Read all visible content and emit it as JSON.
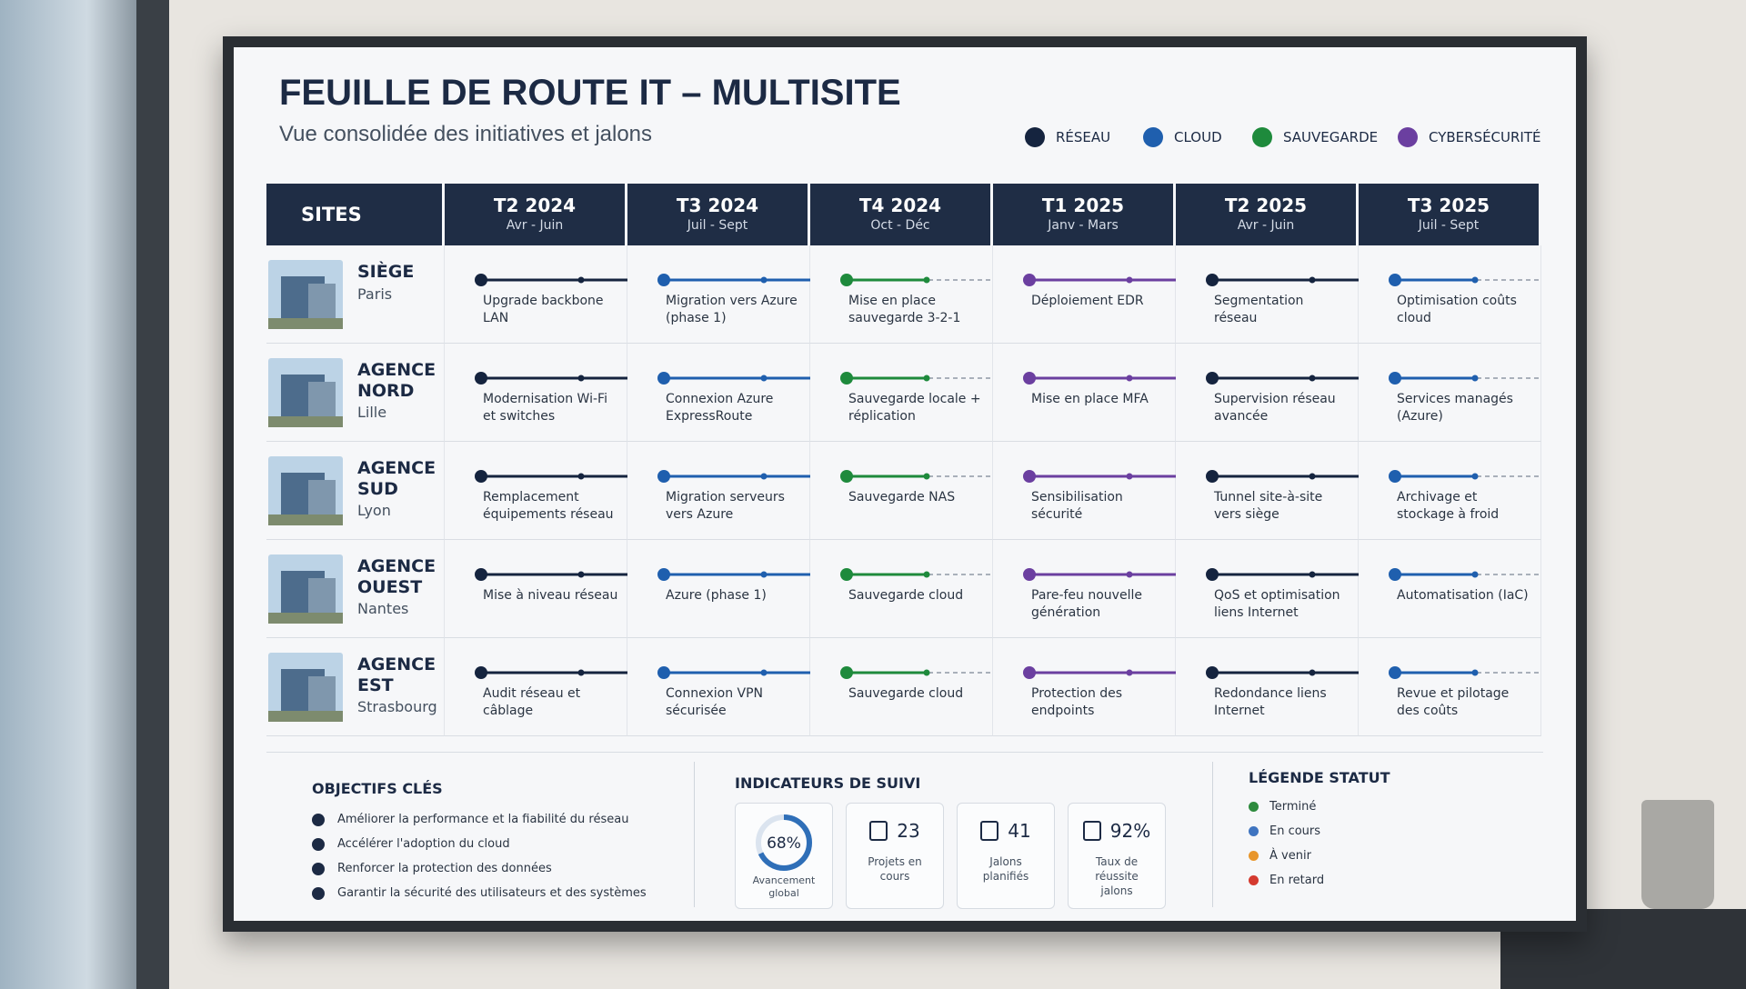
{
  "header": {
    "title": "FEUILLE DE ROUTE IT – MULTISITE",
    "subtitle": "Vue consolidée des initiatives et jalons"
  },
  "legend": [
    {
      "name": "RÉSEAU",
      "color": "#15243f"
    },
    {
      "name": "CLOUD",
      "color": "#1f5fae"
    },
    {
      "name": "SAUVEGARDE",
      "color": "#1e8a3c"
    },
    {
      "name": "CYBERSÉCURITÉ",
      "color": "#6b3fa0"
    }
  ],
  "table": {
    "sites_header": "SITES",
    "columns": [
      {
        "quarter": "T2 2024",
        "months": "Avr - Juin",
        "color": "#15243f"
      },
      {
        "quarter": "T3 2024",
        "months": "Juil - Sept",
        "color": "#1f5fae"
      },
      {
        "quarter": "T4 2024",
        "months": "Oct - Déc",
        "color": "#1e8a3c"
      },
      {
        "quarter": "T1 2025",
        "months": "Janv - Mars",
        "color": "#6b3fa0"
      },
      {
        "quarter": "T2 2025",
        "months": "Avr - Juin",
        "color": "#15243f"
      },
      {
        "quarter": "T3 2025",
        "months": "Juil - Sept",
        "color": "#1f5fae"
      }
    ],
    "rows": [
      {
        "name": "SIÈGE",
        "city": "Paris",
        "items": [
          "Upgrade backbone LAN",
          "Migration vers Azure (phase 1)",
          "Mise en place sauvegarde 3-2-1",
          "Déploiement EDR",
          "Segmentation réseau",
          "Optimisation coûts cloud"
        ]
      },
      {
        "name": "AGENCE NORD",
        "city": "Lille",
        "items": [
          "Modernisation Wi-Fi et switches",
          "Connexion Azure ExpressRoute",
          "Sauvegarde locale + réplication",
          "Mise en place MFA",
          "Supervision réseau avancée",
          "Services managés (Azure)"
        ]
      },
      {
        "name": "AGENCE SUD",
        "city": "Lyon",
        "items": [
          "Remplacement équipements réseau",
          "Migration serveurs vers Azure",
          "Sauvegarde NAS",
          "Sensibilisation sécurité",
          "Tunnel site-à-site vers siège",
          "Archivage et stockage à froid"
        ]
      },
      {
        "name": "AGENCE OUEST",
        "city": "Nantes",
        "items": [
          "Mise à niveau réseau",
          "Azure (phase 1)",
          "Sauvegarde cloud",
          "Pare-feu nouvelle génération",
          "QoS et optimisation liens Internet",
          "Automatisation (IaC)"
        ]
      },
      {
        "name": "AGENCE EST",
        "city": "Strasbourg",
        "items": [
          "Audit réseau et câblage",
          "Connexion VPN sécurisée",
          "Sauvegarde cloud",
          "Protection des endpoints",
          "Redondance liens Internet",
          "Revue et pilotage des coûts"
        ]
      }
    ]
  },
  "objectives": {
    "title": "OBJECTIFS CLÉS",
    "items": [
      "Améliorer la performance et la fiabilité du réseau",
      "Accélérer l'adoption du cloud",
      "Renforcer la protection des données",
      "Garantir la sécurité des utilisateurs et des systèmes"
    ]
  },
  "indicators": {
    "title": "INDICATEURS DE SUIVI",
    "items": [
      {
        "value": {
          "value": 68,
          "label": "68%"
        },
        "label": "Avancement global"
      },
      {
        "value": "23",
        "label": "Projets en cours"
      },
      {
        "value": "41",
        "label": "Jalons planifiés"
      },
      {
        "value": "92%",
        "label": "Taux de réussite jalons"
      }
    ]
  },
  "status_legend": {
    "title": "LÉGENDE STATUT",
    "items": [
      {
        "name": "Terminé",
        "color": "#2e8b3e"
      },
      {
        "name": "En cours",
        "color": "#3f74c0"
      },
      {
        "name": "À venir",
        "color": "#e8962c"
      },
      {
        "name": "En retard",
        "color": "#d43a2f"
      }
    ]
  }
}
